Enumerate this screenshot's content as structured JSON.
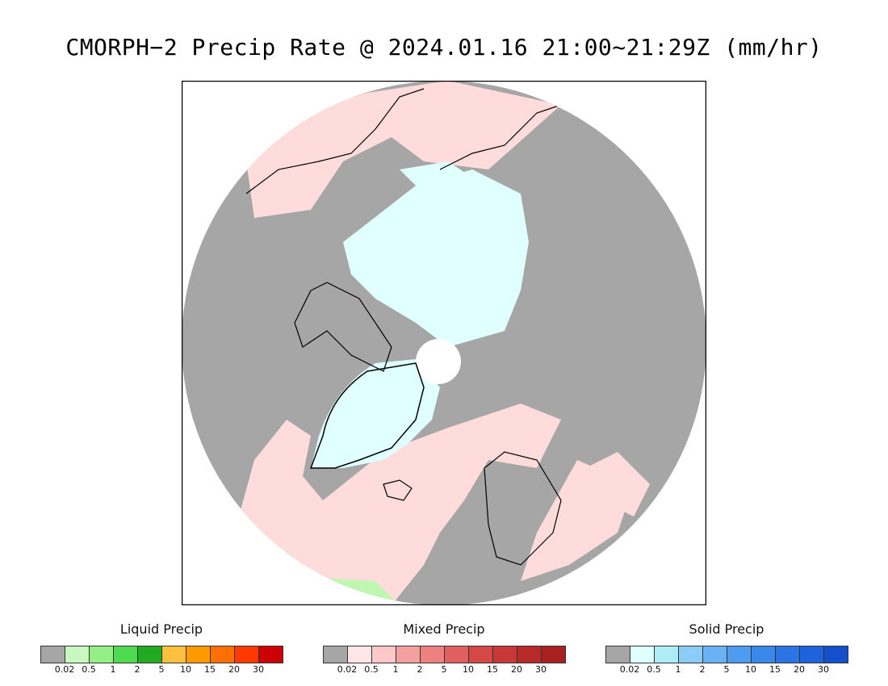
{
  "title": "CMORPH−2 Precip Rate @ 2024.01.16 21:00~21:29Z (mm/hr)",
  "map": {
    "projection": "north-polar-stereographic",
    "background_no_precip": "#a6a6a6",
    "coastline_color": "#000000",
    "dominant_classes": [
      "no-precip",
      "mixed-light",
      "solid-light"
    ]
  },
  "legends": [
    {
      "id": "liquid",
      "title": "Liquid Precip",
      "colors": [
        "#a6a6a6",
        "#c8f7c0",
        "#96ee86",
        "#4fdb4f",
        "#22aa22",
        "#ffc040",
        "#ff9a00",
        "#ff7000",
        "#ff3a00",
        "#cc0000"
      ],
      "ticks": [
        "0.02",
        "0.5",
        "1",
        "2",
        "5",
        "10",
        "15",
        "20",
        "30"
      ]
    },
    {
      "id": "mixed",
      "title": "Mixed Precip",
      "colors": [
        "#a6a6a6",
        "#ffe6e6",
        "#ffc8c8",
        "#f4a0a0",
        "#ee8080",
        "#e06060",
        "#d44848",
        "#c83838",
        "#b82a2a",
        "#a82020"
      ],
      "ticks": [
        "0.02",
        "0.5",
        "1",
        "2",
        "5",
        "10",
        "15",
        "20",
        "30"
      ]
    },
    {
      "id": "solid",
      "title": "Solid Precip",
      "colors": [
        "#a6a6a6",
        "#e0ffff",
        "#aeecf6",
        "#8cccf8",
        "#6ab2f4",
        "#4e9cf0",
        "#3a88ec",
        "#2a74e6",
        "#1e62dc",
        "#1450cc"
      ],
      "ticks": [
        "0.02",
        "0.5",
        "1",
        "2",
        "5",
        "10",
        "15",
        "20",
        "30"
      ]
    }
  ]
}
